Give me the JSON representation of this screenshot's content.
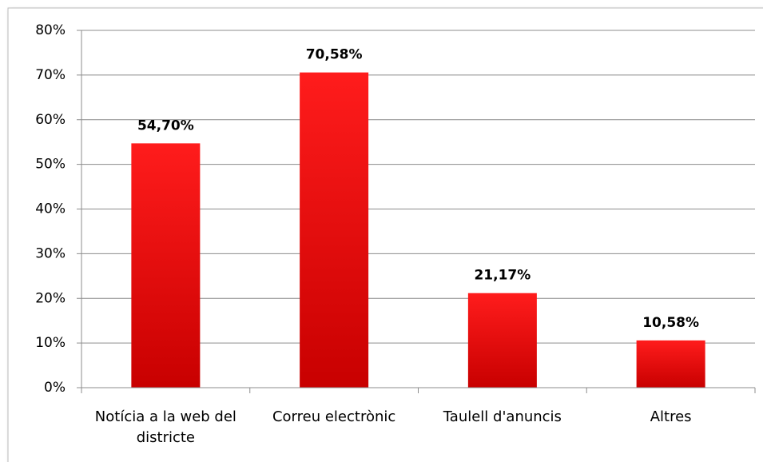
{
  "chart_data": {
    "type": "bar",
    "categories": [
      "Notícia a la web del districte",
      "Correu electrònic",
      "Taulell d'anuncis",
      "Altres"
    ],
    "values": [
      54.7,
      70.58,
      21.17,
      10.58
    ],
    "value_labels": [
      "54,70%",
      "70,58%",
      "21,17%",
      "10,58%"
    ],
    "color": "#e00000",
    "ylim": [
      0,
      80
    ],
    "yticks": [
      {
        "value": 0,
        "label": "0%"
      },
      {
        "value": 10,
        "label": "10%"
      },
      {
        "value": 20,
        "label": "20%"
      },
      {
        "value": 30,
        "label": "30%"
      },
      {
        "value": 40,
        "label": "40%"
      },
      {
        "value": 50,
        "label": "50%"
      },
      {
        "value": 60,
        "label": "60%"
      },
      {
        "value": 70,
        "label": "70%"
      },
      {
        "value": 80,
        "label": "80%"
      }
    ],
    "grid": true
  }
}
